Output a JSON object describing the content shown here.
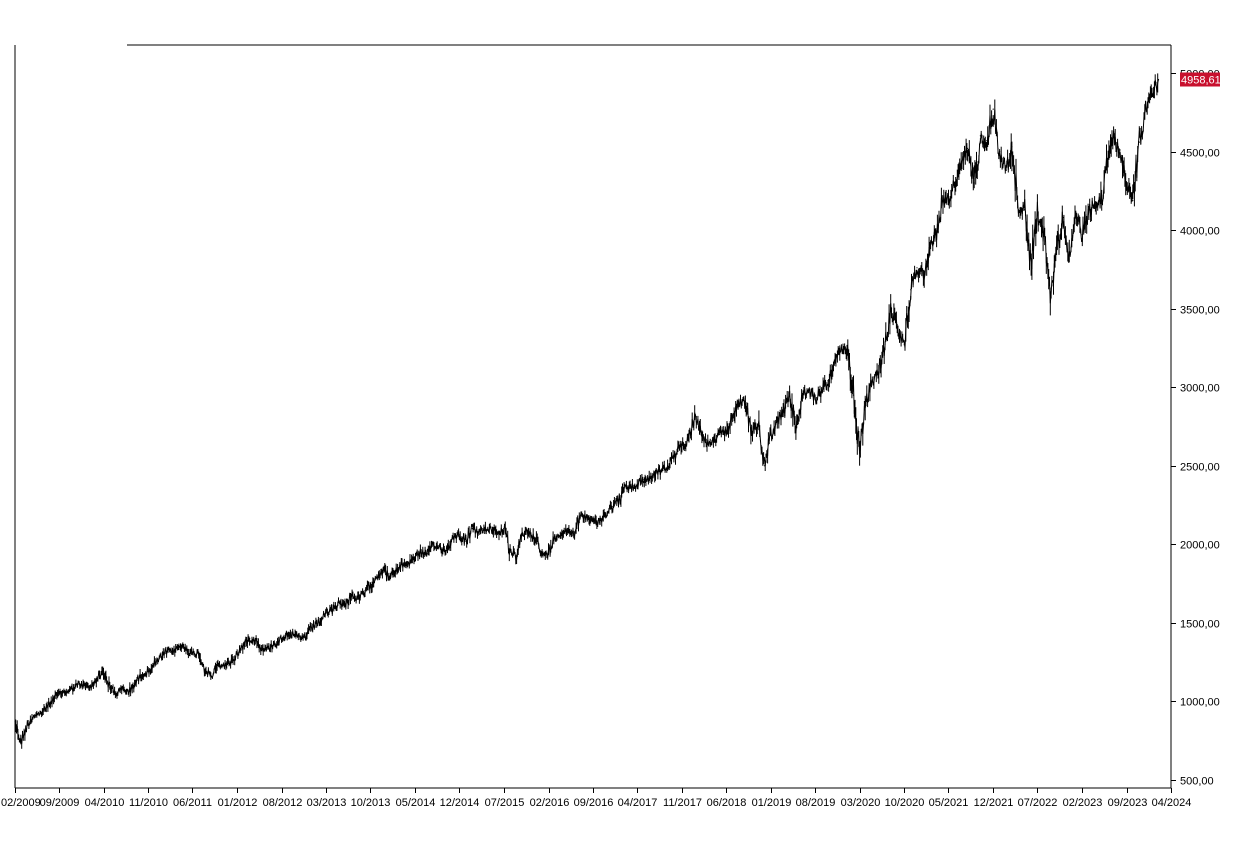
{
  "colors": {
    "background": "#ffffff",
    "axis": "#000000",
    "series": "#000000",
    "last_price_badge": "#c8102e",
    "last_price_text": "#ffffff"
  },
  "chart_data": {
    "type": "line",
    "title": "",
    "xlabel": "",
    "ylabel": "",
    "grid": false,
    "legend": "none",
    "x_range": [
      "2009-02-01",
      "2024-04-01"
    ],
    "ylim": [
      500,
      5000
    ],
    "y_ticks": [
      {
        "value": 500,
        "label": "500,00"
      },
      {
        "value": 1000,
        "label": "1000,00"
      },
      {
        "value": 1500,
        "label": "1500,00"
      },
      {
        "value": 2000,
        "label": "2000,00"
      },
      {
        "value": 2500,
        "label": "2500,00"
      },
      {
        "value": 3000,
        "label": "3000,00"
      },
      {
        "value": 3500,
        "label": "3500,00"
      },
      {
        "value": 4000,
        "label": "4000,00"
      },
      {
        "value": 4500,
        "label": "4500,00"
      },
      {
        "value": 5000,
        "label": "5000,00"
      }
    ],
    "x_ticks": [
      {
        "date": "2009-02",
        "label": "02/2009"
      },
      {
        "date": "2009-09",
        "label": "09/2009"
      },
      {
        "date": "2010-04",
        "label": "04/2010"
      },
      {
        "date": "2010-11",
        "label": "11/2010"
      },
      {
        "date": "2011-06",
        "label": "06/2011"
      },
      {
        "date": "2012-01",
        "label": "01/2012"
      },
      {
        "date": "2012-08",
        "label": "08/2012"
      },
      {
        "date": "2013-03",
        "label": "03/2013"
      },
      {
        "date": "2013-10",
        "label": "10/2013"
      },
      {
        "date": "2014-05",
        "label": "05/2014"
      },
      {
        "date": "2014-12",
        "label": "12/2014"
      },
      {
        "date": "2015-07",
        "label": "07/2015"
      },
      {
        "date": "2016-02",
        "label": "02/2016"
      },
      {
        "date": "2016-09",
        "label": "09/2016"
      },
      {
        "date": "2017-04",
        "label": "04/2017"
      },
      {
        "date": "2017-11",
        "label": "11/2017"
      },
      {
        "date": "2018-06",
        "label": "06/2018"
      },
      {
        "date": "2019-01",
        "label": "01/2019"
      },
      {
        "date": "2019-08",
        "label": "08/2019"
      },
      {
        "date": "2020-03",
        "label": "03/2020"
      },
      {
        "date": "2020-10",
        "label": "10/2020"
      },
      {
        "date": "2021-05",
        "label": "05/2021"
      },
      {
        "date": "2021-12",
        "label": "12/2021"
      },
      {
        "date": "2022-07",
        "label": "07/2022"
      },
      {
        "date": "2023-02",
        "label": "02/2023"
      },
      {
        "date": "2023-09",
        "label": "09/2023"
      },
      {
        "date": "2024-04",
        "label": "04/2024"
      }
    ],
    "last_value": {
      "value": 4958.61,
      "label": "4958,61"
    },
    "series": [
      {
        "x": [
          "2009-02",
          "2009-03",
          "2009-04",
          "2009-05",
          "2009-06",
          "2009-07",
          "2009-08",
          "2009-09",
          "2009-10",
          "2009-11",
          "2009-12",
          "2010-01",
          "2010-02",
          "2010-03",
          "2010-04",
          "2010-05",
          "2010-06",
          "2010-07",
          "2010-08",
          "2010-09",
          "2010-10",
          "2010-11",
          "2010-12",
          "2011-01",
          "2011-02",
          "2011-03",
          "2011-04",
          "2011-05",
          "2011-06",
          "2011-07",
          "2011-08",
          "2011-09",
          "2011-10",
          "2011-11",
          "2011-12",
          "2012-01",
          "2012-02",
          "2012-03",
          "2012-04",
          "2012-05",
          "2012-06",
          "2012-07",
          "2012-08",
          "2012-09",
          "2012-10",
          "2012-11",
          "2012-12",
          "2013-01",
          "2013-02",
          "2013-03",
          "2013-04",
          "2013-05",
          "2013-06",
          "2013-07",
          "2013-08",
          "2013-09",
          "2013-10",
          "2013-11",
          "2013-12",
          "2014-01",
          "2014-02",
          "2014-03",
          "2014-04",
          "2014-05",
          "2014-06",
          "2014-07",
          "2014-08",
          "2014-09",
          "2014-10",
          "2014-11",
          "2014-12",
          "2015-01",
          "2015-02",
          "2015-03",
          "2015-04",
          "2015-05",
          "2015-06",
          "2015-07",
          "2015-08",
          "2015-09",
          "2015-10",
          "2015-11",
          "2015-12",
          "2016-01",
          "2016-02",
          "2016-03",
          "2016-04",
          "2016-05",
          "2016-06",
          "2016-07",
          "2016-08",
          "2016-09",
          "2016-10",
          "2016-11",
          "2016-12",
          "2017-01",
          "2017-02",
          "2017-03",
          "2017-04",
          "2017-05",
          "2017-06",
          "2017-07",
          "2017-08",
          "2017-09",
          "2017-10",
          "2017-11",
          "2017-12",
          "2018-01",
          "2018-02",
          "2018-03",
          "2018-04",
          "2018-05",
          "2018-06",
          "2018-07",
          "2018-08",
          "2018-09",
          "2018-10",
          "2018-11",
          "2018-12",
          "2019-01",
          "2019-02",
          "2019-03",
          "2019-04",
          "2019-05",
          "2019-06",
          "2019-07",
          "2019-08",
          "2019-09",
          "2019-10",
          "2019-11",
          "2019-12",
          "2020-01",
          "2020-02",
          "2020-03",
          "2020-04",
          "2020-05",
          "2020-06",
          "2020-07",
          "2020-08",
          "2020-09",
          "2020-10",
          "2020-11",
          "2020-12",
          "2021-01",
          "2021-02",
          "2021-03",
          "2021-04",
          "2021-05",
          "2021-06",
          "2021-07",
          "2021-08",
          "2021-09",
          "2021-10",
          "2021-11",
          "2021-12",
          "2022-01",
          "2022-02",
          "2022-03",
          "2022-04",
          "2022-05",
          "2022-06",
          "2022-07",
          "2022-08",
          "2022-09",
          "2022-10",
          "2022-11",
          "2022-12",
          "2023-01",
          "2023-02",
          "2023-03",
          "2023-04",
          "2023-05",
          "2023-06",
          "2023-07",
          "2023-08",
          "2023-09",
          "2023-10",
          "2023-11",
          "2023-12",
          "2024-01",
          "2024-02"
        ],
        "values": [
          870,
          740,
          850,
          910,
          920,
          960,
          1010,
          1050,
          1060,
          1080,
          1110,
          1100,
          1090,
          1150,
          1190,
          1090,
          1050,
          1080,
          1060,
          1120,
          1170,
          1190,
          1240,
          1280,
          1320,
          1320,
          1350,
          1340,
          1300,
          1310,
          1200,
          1160,
          1230,
          1230,
          1250,
          1300,
          1360,
          1400,
          1390,
          1330,
          1340,
          1370,
          1400,
          1440,
          1420,
          1400,
          1420,
          1480,
          1510,
          1560,
          1580,
          1630,
          1610,
          1680,
          1650,
          1690,
          1740,
          1800,
          1840,
          1790,
          1830,
          1870,
          1880,
          1920,
          1950,
          1940,
          1990,
          1980,
          1960,
          2050,
          2060,
          2020,
          2100,
          2080,
          2090,
          2110,
          2070,
          2100,
          1950,
          1920,
          2070,
          2080,
          2040,
          1930,
          1940,
          2050,
          2070,
          2090,
          2080,
          2170,
          2180,
          2160,
          2130,
          2200,
          2240,
          2280,
          2360,
          2360,
          2380,
          2410,
          2420,
          2460,
          2470,
          2510,
          2570,
          2630,
          2670,
          2820,
          2710,
          2640,
          2650,
          2700,
          2720,
          2810,
          2900,
          2910,
          2710,
          2760,
          2500,
          2700,
          2780,
          2830,
          2940,
          2750,
          2940,
          2980,
          2920,
          2980,
          3040,
          3140,
          3230,
          3230,
          2950,
          2580,
          2900,
          3040,
          3100,
          3270,
          3500,
          3360,
          3270,
          3620,
          3760,
          3710,
          3900,
          3970,
          4180,
          4200,
          4300,
          4400,
          4520,
          4300,
          4600,
          4570,
          4770,
          4500,
          4380,
          4530,
          4130,
          4130,
          3790,
          4130,
          3960,
          3590,
          3870,
          4080,
          3840,
          4080,
          3970,
          4110,
          4170,
          4180,
          4450,
          4590,
          4510,
          4290,
          4190,
          4560,
          4770,
          4850,
          4958.61
        ]
      }
    ]
  }
}
